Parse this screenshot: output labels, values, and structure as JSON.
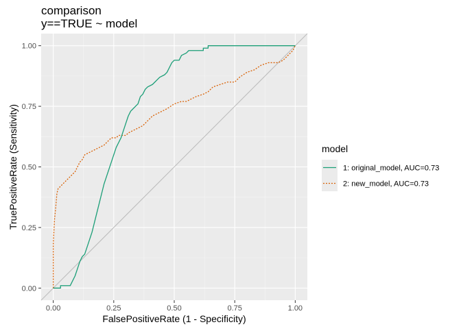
{
  "chart_data": {
    "type": "line",
    "title": "comparison",
    "subtitle": "y==TRUE ~ model",
    "xlabel": "FalsePositiveRate (1 - Specificity)",
    "ylabel": "TruePositiveRate (Sensitivity)",
    "xlim": [
      -0.05,
      1.05
    ],
    "ylim": [
      -0.05,
      1.05
    ],
    "x_ticks": [
      0,
      0.25,
      0.5,
      0.75,
      1
    ],
    "x_tick_labels": [
      "0.00",
      "0.25",
      "0.50",
      "0.75",
      "1.00"
    ],
    "y_ticks": [
      0,
      0.25,
      0.5,
      0.75,
      1
    ],
    "y_tick_labels": [
      "0.00",
      "0.25",
      "0.50",
      "0.75",
      "1.00"
    ],
    "grid": true,
    "legend_position": "right",
    "legend_title": "model",
    "reference_line": {
      "from": [
        -0.05,
        -0.05
      ],
      "to": [
        1.05,
        1.05
      ],
      "color": "#bdbdbd"
    },
    "series": [
      {
        "name": "1: original_model, AUC=0.73",
        "color": "#1b9e77",
        "dash": "solid",
        "points": [
          [
            0.0,
            0.0
          ],
          [
            0.03,
            0.0
          ],
          [
            0.03,
            0.01
          ],
          [
            0.07,
            0.01
          ],
          [
            0.08,
            0.03
          ],
          [
            0.09,
            0.05
          ],
          [
            0.1,
            0.08
          ],
          [
            0.11,
            0.11
          ],
          [
            0.12,
            0.13
          ],
          [
            0.13,
            0.14
          ],
          [
            0.14,
            0.17
          ],
          [
            0.15,
            0.2
          ],
          [
            0.16,
            0.23
          ],
          [
            0.17,
            0.27
          ],
          [
            0.18,
            0.31
          ],
          [
            0.19,
            0.35
          ],
          [
            0.2,
            0.39
          ],
          [
            0.21,
            0.43
          ],
          [
            0.22,
            0.46
          ],
          [
            0.23,
            0.49
          ],
          [
            0.24,
            0.52
          ],
          [
            0.25,
            0.55
          ],
          [
            0.26,
            0.58
          ],
          [
            0.27,
            0.6
          ],
          [
            0.28,
            0.62
          ],
          [
            0.29,
            0.65
          ],
          [
            0.3,
            0.68
          ],
          [
            0.31,
            0.71
          ],
          [
            0.32,
            0.73
          ],
          [
            0.33,
            0.74
          ],
          [
            0.34,
            0.75
          ],
          [
            0.35,
            0.76
          ],
          [
            0.36,
            0.79
          ],
          [
            0.37,
            0.8
          ],
          [
            0.38,
            0.82
          ],
          [
            0.39,
            0.83
          ],
          [
            0.41,
            0.84
          ],
          [
            0.42,
            0.85
          ],
          [
            0.43,
            0.86
          ],
          [
            0.44,
            0.87
          ],
          [
            0.46,
            0.88
          ],
          [
            0.47,
            0.89
          ],
          [
            0.48,
            0.91
          ],
          [
            0.49,
            0.93
          ],
          [
            0.5,
            0.94
          ],
          [
            0.52,
            0.94
          ],
          [
            0.53,
            0.96
          ],
          [
            0.55,
            0.97
          ],
          [
            0.56,
            0.98
          ],
          [
            0.62,
            0.98
          ],
          [
            0.62,
            0.99
          ],
          [
            0.64,
            0.99
          ],
          [
            0.64,
            1.0
          ],
          [
            0.72,
            1.0
          ],
          [
            1.0,
            1.0
          ]
        ]
      },
      {
        "name": "2: new_model, AUC=0.73",
        "color": "#d95f02",
        "dash": "dotted",
        "points": [
          [
            0.0,
            0.0
          ],
          [
            0.0,
            0.18
          ],
          [
            0.005,
            0.28
          ],
          [
            0.01,
            0.33
          ],
          [
            0.015,
            0.39
          ],
          [
            0.02,
            0.41
          ],
          [
            0.03,
            0.42
          ],
          [
            0.04,
            0.43
          ],
          [
            0.05,
            0.44
          ],
          [
            0.06,
            0.45
          ],
          [
            0.07,
            0.46
          ],
          [
            0.08,
            0.47
          ],
          [
            0.09,
            0.48
          ],
          [
            0.1,
            0.5
          ],
          [
            0.11,
            0.52
          ],
          [
            0.12,
            0.53
          ],
          [
            0.13,
            0.55
          ],
          [
            0.15,
            0.56
          ],
          [
            0.17,
            0.57
          ],
          [
            0.19,
            0.58
          ],
          [
            0.21,
            0.59
          ],
          [
            0.22,
            0.6
          ],
          [
            0.23,
            0.61
          ],
          [
            0.24,
            0.62
          ],
          [
            0.26,
            0.62
          ],
          [
            0.27,
            0.63
          ],
          [
            0.3,
            0.63
          ],
          [
            0.31,
            0.64
          ],
          [
            0.33,
            0.65
          ],
          [
            0.35,
            0.66
          ],
          [
            0.37,
            0.67
          ],
          [
            0.39,
            0.69
          ],
          [
            0.41,
            0.71
          ],
          [
            0.43,
            0.72
          ],
          [
            0.45,
            0.73
          ],
          [
            0.47,
            0.74
          ],
          [
            0.5,
            0.76
          ],
          [
            0.53,
            0.77
          ],
          [
            0.55,
            0.77
          ],
          [
            0.57,
            0.78
          ],
          [
            0.59,
            0.79
          ],
          [
            0.62,
            0.8
          ],
          [
            0.64,
            0.81
          ],
          [
            0.66,
            0.83
          ],
          [
            0.69,
            0.84
          ],
          [
            0.72,
            0.85
          ],
          [
            0.75,
            0.85
          ],
          [
            0.77,
            0.87
          ],
          [
            0.8,
            0.89
          ],
          [
            0.83,
            0.9
          ],
          [
            0.86,
            0.92
          ],
          [
            0.89,
            0.93
          ],
          [
            0.93,
            0.93
          ],
          [
            0.95,
            0.94
          ],
          [
            0.97,
            0.96
          ],
          [
            0.99,
            0.98
          ],
          [
            1.0,
            1.0
          ]
        ]
      }
    ]
  }
}
